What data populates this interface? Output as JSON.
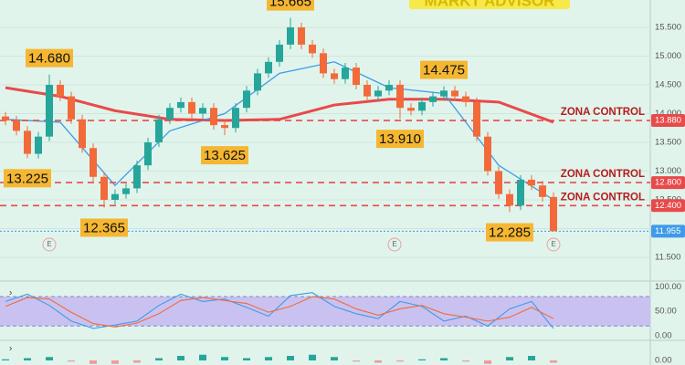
{
  "chart_data": {
    "type": "candlestick",
    "watermark": "MARKT ADVISOR",
    "up_color": "#26a69a",
    "down_color": "#f26a3a",
    "open": [
      13.95,
      13.88,
      13.7,
      13.3,
      13.6,
      14.5,
      14.3,
      13.9,
      13.4,
      12.9,
      12.5,
      12.6,
      12.7,
      13.1,
      13.5,
      13.9,
      14.1,
      14.2,
      14.0,
      14.1,
      13.8,
      13.75,
      14.1,
      14.4,
      14.7,
      14.9,
      15.2,
      15.5,
      15.2,
      15.05,
      14.7,
      14.6,
      14.8,
      14.5,
      14.3,
      14.4,
      14.5,
      14.1,
      14.05,
      14.2,
      14.3,
      14.4,
      14.3,
      14.2,
      13.6,
      13.0,
      12.6,
      12.4,
      12.85,
      12.75,
      12.55
    ],
    "high": [
      14.03,
      13.96,
      13.78,
      13.68,
      14.68,
      14.58,
      14.38,
      13.98,
      13.48,
      12.98,
      12.68,
      12.78,
      13.18,
      13.58,
      13.98,
      14.18,
      14.28,
      14.28,
      14.18,
      14.18,
      13.88,
      14.18,
      14.48,
      14.78,
      14.98,
      15.28,
      15.665,
      15.58,
      15.28,
      15.13,
      14.78,
      14.88,
      14.88,
      14.58,
      14.48,
      14.58,
      14.58,
      14.18,
      14.28,
      14.38,
      14.475,
      14.48,
      14.38,
      14.28,
      13.68,
      13.08,
      12.68,
      12.93,
      12.93,
      12.83,
      12.63
    ],
    "low": [
      13.8,
      13.62,
      13.225,
      13.22,
      13.52,
      14.22,
      13.82,
      13.32,
      12.82,
      12.365,
      12.42,
      12.52,
      12.62,
      13.02,
      13.42,
      13.82,
      14.02,
      13.92,
      13.92,
      13.72,
      13.625,
      13.67,
      14.02,
      14.32,
      14.62,
      14.82,
      15.12,
      15.12,
      14.97,
      14.62,
      14.52,
      14.52,
      14.42,
      14.22,
      14.22,
      14.32,
      13.91,
      13.97,
      13.97,
      14.12,
      14.22,
      14.22,
      14.12,
      13.52,
      12.92,
      12.52,
      12.285,
      12.32,
      12.67,
      12.47,
      11.955
    ],
    "close": [
      13.88,
      13.7,
      13.3,
      13.6,
      14.5,
      14.3,
      13.9,
      13.4,
      12.9,
      12.5,
      12.6,
      12.7,
      13.1,
      13.5,
      13.9,
      14.1,
      14.2,
      14.0,
      14.1,
      13.8,
      13.75,
      14.1,
      14.4,
      14.7,
      14.9,
      15.2,
      15.5,
      15.2,
      15.05,
      14.7,
      14.6,
      14.8,
      14.5,
      14.3,
      14.4,
      14.5,
      14.1,
      14.05,
      14.2,
      14.3,
      14.4,
      14.3,
      14.2,
      13.6,
      13.0,
      12.6,
      12.4,
      12.85,
      12.75,
      12.55,
      11.955
    ],
    "overlays": [
      {
        "color": "#e84a4a",
        "x": [
          0,
          5,
          10,
          15,
          20,
          25,
          30,
          35,
          40,
          45,
          50
        ],
        "values": [
          14.45,
          14.3,
          14.05,
          13.9,
          13.88,
          13.9,
          14.15,
          14.25,
          14.25,
          14.2,
          13.85
        ]
      },
      {
        "color": "#3d9be9",
        "x": [
          0,
          5,
          10,
          15,
          20,
          25,
          30,
          35,
          40,
          45,
          50
        ],
        "values": [
          13.9,
          13.85,
          12.75,
          13.7,
          14.0,
          14.7,
          14.9,
          14.45,
          14.35,
          13.1,
          12.5
        ]
      }
    ],
    "ylim": [
      11.135,
      15.976
    ],
    "yticks": [
      {
        "value": 11.5,
        "label": "11.500"
      },
      {
        "value": 12,
        "label": "12.000"
      },
      {
        "value": 12.5,
        "label": "12.500"
      },
      {
        "value": 13,
        "label": "13.000"
      },
      {
        "value": 13.5,
        "label": "13.500"
      },
      {
        "value": 14,
        "label": "14.000"
      },
      {
        "value": 14.5,
        "label": "14.500"
      },
      {
        "value": 15,
        "label": "15.000"
      },
      {
        "value": 15.5,
        "label": "15.500"
      }
    ],
    "grid": true,
    "levels": [
      {
        "value": 13.88,
        "label": "13.880",
        "text": "ZONA CONTROL",
        "color": "#e84a4a"
      },
      {
        "value": 12.8,
        "label": "12.800",
        "text": "ZONA CONTROL",
        "color": "#e84a4a"
      },
      {
        "value": 12.4,
        "label": "12.400",
        "text": "ZONA CONTROL",
        "color": "#e84a4a"
      }
    ],
    "last_price": {
      "value": 11.955,
      "label": "11.955",
      "color": "#3d9be9"
    },
    "annotations": [
      {
        "index": 26,
        "value": 15.665,
        "label": "15.665",
        "side": "above"
      },
      {
        "index": 4,
        "value": 14.68,
        "label": "14.680",
        "side": "above"
      },
      {
        "index": 2,
        "value": 13.225,
        "label": "13.225",
        "side": "below"
      },
      {
        "index": 9,
        "value": 12.365,
        "label": "12.365",
        "side": "below"
      },
      {
        "index": 20,
        "value": 13.625,
        "label": "13.625",
        "side": "below"
      },
      {
        "index": 36,
        "value": 13.91,
        "label": "13.910",
        "side": "below"
      },
      {
        "index": 40,
        "value": 14.475,
        "label": "14.475",
        "side": "above"
      },
      {
        "index": 46,
        "value": 12.285,
        "label": "12.285",
        "side": "below"
      }
    ],
    "events": [
      {
        "index": 4,
        "label": "E"
      },
      {
        "index": 35.5,
        "label": "E"
      },
      {
        "index": 50,
        "label": "E"
      }
    ],
    "stochastic": {
      "x": [
        0,
        2,
        4,
        6,
        8,
        10,
        12,
        14,
        16,
        18,
        20,
        22,
        24,
        26,
        28,
        30,
        32,
        34,
        36,
        38,
        40,
        42,
        44,
        46,
        48,
        50
      ],
      "k": [
        70,
        85,
        62,
        30,
        15,
        22,
        30,
        62,
        85,
        70,
        75,
        58,
        40,
        82,
        88,
        60,
        45,
        35,
        70,
        60,
        30,
        40,
        20,
        55,
        70,
        15
      ],
      "d": [
        60,
        78,
        75,
        48,
        25,
        18,
        26,
        45,
        72,
        78,
        72,
        66,
        48,
        60,
        80,
        75,
        55,
        42,
        55,
        62,
        45,
        38,
        30,
        38,
        58,
        35
      ],
      "k_color": "#3d9be9",
      "d_color": "#f26a3a",
      "band": [
        20,
        80
      ],
      "ylim": [
        -7.5,
        108
      ],
      "yticks": [
        {
          "value": 100,
          "label": "100.00"
        },
        {
          "value": 50,
          "label": "50.00"
        },
        {
          "value": 0,
          "label": "0.00"
        }
      ]
    },
    "macd": {
      "x": [
        0,
        2,
        4,
        6,
        8,
        10,
        12,
        14,
        16,
        18,
        20,
        22,
        24,
        26,
        28,
        30,
        32,
        34,
        36,
        38,
        40,
        42,
        44,
        46,
        48,
        50
      ],
      "values": [
        0.01,
        0.02,
        0.03,
        -0.01,
        -0.03,
        -0.03,
        -0.02,
        0.02,
        0.04,
        0.05,
        0.03,
        0.02,
        0.03,
        0.04,
        0.05,
        0.03,
        -0.01,
        -0.02,
        -0.01,
        0.01,
        0.02,
        -0.01,
        -0.03,
        0.03,
        0.04,
        -0.02
      ],
      "ylim": [
        -0.04,
        0.16
      ],
      "yticks": [
        {
          "value": 0,
          "label": "0.00"
        }
      ]
    }
  }
}
